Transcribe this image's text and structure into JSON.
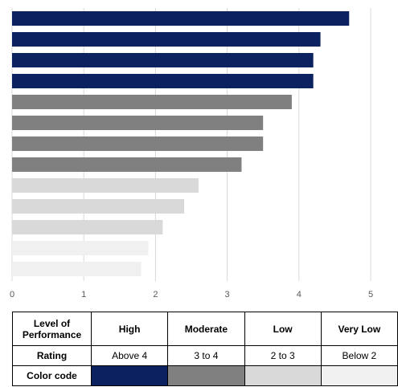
{
  "chart_data": {
    "type": "bar",
    "orientation": "horizontal",
    "values": [
      4.7,
      4.3,
      4.2,
      4.2,
      3.9,
      3.5,
      3.5,
      3.2,
      2.6,
      2.4,
      2.1,
      1.9,
      1.8
    ],
    "xlim": [
      0,
      5
    ],
    "xticks": [
      0,
      1,
      2,
      3,
      4,
      5
    ],
    "grid": "vertical",
    "colors": {
      "high": "#0b2160",
      "moderate": "#808080",
      "low": "#d9d9d9",
      "very_low": "#f0f0f0",
      "gridline": "#d9d9d9",
      "axis_text": "#595959"
    },
    "thresholds": {
      "high": 4,
      "moderate": 3,
      "low": 2
    }
  },
  "legend_table": {
    "level_header": [
      "Level of",
      "Performance"
    ],
    "level_values": [
      "High",
      "Moderate",
      "Low",
      "Very Low"
    ],
    "rating_header": "Rating",
    "rating_values": [
      "Above 4",
      "3 to 4",
      "2 to 3",
      "Below 2"
    ],
    "color_header": "Color code",
    "color_swatches": [
      "#0b2160",
      "#808080",
      "#d9d9d9",
      "#f0f0f0"
    ]
  }
}
